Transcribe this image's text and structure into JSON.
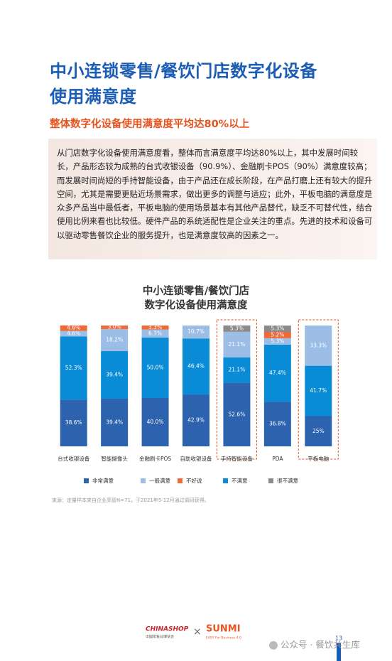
{
  "title": [
    "中小连锁零售/餐饮门店数字化设备",
    "使用满意度"
  ],
  "subtitle": "整体数字化设备使用满意度平均达80%以上",
  "body": "从门店数字化设备使用满意度看，整体而言满意度平均达80%以上，其中发展时间较长，产品形态较为成熟的台式收银设备（90.9%）、金融刷卡POS（90%）满意度较高；而发展时间尚短的手持智能设备，由于产品还在成长阶段，在产品打磨上还有较大的提升空间，尤其是需要更贴近场景需求，做出更多的调整与适应；此外，平板电脑的满意度是众多产品当中最低者，平板电脑的使用场景基本有其他产品替代，缺乏不可替代性，结合使用比例来看也比较低。硬件产品的系统适配性是企业关注的重点。先进的技术和设备可以驱动零售餐饮企业的服务提升，也是满意度较高的因素之一。",
  "chart_data": {
    "type": "stacked-bar",
    "title": [
      "中小连锁零售/餐饮门店",
      "数字化设备使用满意度"
    ],
    "categories": [
      "台式收银设备",
      "智能摄像头",
      "金融刷卡POS",
      "自助收银设备",
      "手持智能设备",
      "PDA",
      "平板电脑"
    ],
    "ylim": [
      0,
      100
    ],
    "highlight": [
      4,
      6
    ],
    "series": [
      {
        "name": "非常满意",
        "color": "#2c62ae",
        "values": [
          38.6,
          39.4,
          40.0,
          42.9,
          52.6,
          36.8,
          25
        ],
        "value_labels": [
          "38.6%",
          "39.4%",
          "40.0%",
          "42.9%",
          "52.6%",
          "36.8%",
          "25%"
        ]
      },
      {
        "name": "一般满意",
        "color": "#9cbde6",
        "values": [
          4.6,
          18.2,
          6.7,
          10.7,
          21.1,
          5.3,
          33.3
        ],
        "value_labels": [
          "4.6%",
          "18.2%",
          "6.7%",
          "10.7%",
          "21.1%",
          "5.3%",
          "33.3%"
        ]
      },
      {
        "name": "不好说",
        "color": "#ee6a3a",
        "values": [
          4.6,
          3.0,
          3.3,
          null,
          null,
          5.2,
          null
        ],
        "value_labels": [
          "4.6%",
          "3.0%",
          "3.3%",
          null,
          null,
          "5.2%",
          null
        ]
      },
      {
        "name": "不满意",
        "color": "#0a8bd5",
        "values": [
          52.3,
          39.4,
          50.0,
          46.4,
          21.1,
          47.4,
          41.7
        ],
        "value_labels": [
          "52.3%",
          "39.4%",
          "50.0%",
          "46.4%",
          "21.1%",
          "47.4%",
          "41.7%"
        ]
      },
      {
        "name": "很不满意",
        "color": "#8b8b8b",
        "values": [
          null,
          null,
          null,
          null,
          5.3,
          5.3,
          null
        ],
        "value_labels": [
          null,
          null,
          null,
          null,
          "5.3%",
          "5.3%",
          null
        ]
      }
    ],
    "stack_order": [
      0,
      3,
      1,
      2,
      4
    ]
  },
  "source": "来源：定量样本来自企业高管N=71，于2021年5-12月通过调研获得。",
  "footer": {
    "logo_left": "CHINASHOP",
    "logo_left_sub": "中国零售业博览会",
    "cross": "×",
    "logo_right": "SUNMI",
    "logo_right_sub": "EASY For Business 4.0",
    "page": "13",
    "watermark": "公众号 · 餐饮共生库"
  }
}
